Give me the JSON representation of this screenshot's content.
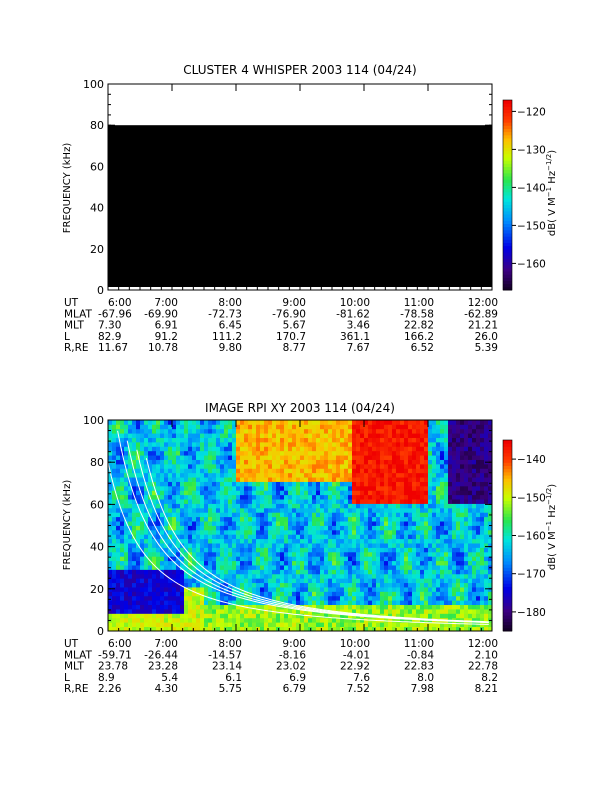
{
  "chart_data": [
    {
      "type": "heatmap",
      "title": "CLUSTER 4 WHISPER 2003 114 (04/24)",
      "ylabel": "FREQUENCY (kHz)",
      "ylim": [
        0,
        100
      ],
      "yticks": [
        "0",
        "20",
        "40",
        "60",
        "80",
        "100"
      ],
      "x_ticks": [
        "6:00",
        "7:00",
        "8:00",
        "9:00",
        "10:00",
        "11:00",
        "12:00"
      ],
      "data_frequency_range_khz": [
        0,
        80
      ],
      "data_fill_color": "#000000",
      "colorbar": {
        "label_parts": [
          "dB( V M",
          "-1",
          " Hz",
          "-1/2",
          ")"
        ],
        "range": [
          -167,
          -117
        ],
        "ticks": [
          "-120",
          "-130",
          "-140",
          "-150",
          "-160"
        ]
      },
      "ephemeris": [
        {
          "label": "UT",
          "values": [
            "6:00",
            "7:00",
            "8:00",
            "9:00",
            "10:00",
            "11:00",
            "12:00"
          ]
        },
        {
          "label": "MLAT",
          "values": [
            "-67.96",
            "-69.90",
            "-72.73",
            "-76.90",
            "-81.62",
            "-78.58",
            "-62.89"
          ]
        },
        {
          "label": "MLT",
          "values": [
            "7.30",
            "6.91",
            "6.45",
            "5.67",
            "3.46",
            "22.82",
            "21.21"
          ]
        },
        {
          "label": "L",
          "values": [
            "82.9",
            "91.2",
            "111.2",
            "170.7",
            "361.1",
            "166.2",
            "26.0"
          ]
        },
        {
          "label": "R,RE",
          "values": [
            "11.67",
            "10.78",
            "9.80",
            "8.77",
            "7.67",
            "6.52",
            "5.39"
          ]
        }
      ]
    },
    {
      "type": "heatmap",
      "title": "IMAGE RPI XY 2003 114 (04/24)",
      "ylabel": "FREQUENCY (kHz)",
      "ylim": [
        0,
        100
      ],
      "yticks": [
        "0",
        "20",
        "40",
        "60",
        "80",
        "100"
      ],
      "x_ticks": [
        "6:00",
        "7:00",
        "8:00",
        "9:00",
        "10:00",
        "11:00",
        "12:00"
      ],
      "colorbar": {
        "label_parts": [
          "dB( V M",
          "-1",
          " Hz",
          "-1/2",
          ")"
        ],
        "range": [
          -185,
          -135
        ],
        "ticks": [
          "-140",
          "-150",
          "-160",
          "-170",
          "-180"
        ]
      },
      "ephemeris": [
        {
          "label": "UT",
          "values": [
            "6:00",
            "7:00",
            "8:00",
            "9:00",
            "10:00",
            "11:00",
            "12:00"
          ]
        },
        {
          "label": "MLAT",
          "values": [
            "-59.71",
            "-26.44",
            "-14.57",
            "-8.16",
            "-4.01",
            "-0.84",
            "2.10"
          ]
        },
        {
          "label": "MLT",
          "values": [
            "23.78",
            "23.28",
            "23.14",
            "23.02",
            "22.92",
            "22.83",
            "22.78"
          ]
        },
        {
          "label": "L",
          "values": [
            "8.9",
            "5.4",
            "6.1",
            "6.9",
            "7.6",
            "8.0",
            "8.2"
          ]
        },
        {
          "label": "R,RE",
          "values": [
            "2.26",
            "4.30",
            "5.75",
            "6.79",
            "7.52",
            "7.98",
            "8.21"
          ]
        }
      ],
      "spectrogram_features": [
        {
          "x_range_hours": [
            9.8,
            11.0
          ],
          "y_range_khz": [
            60,
            100
          ],
          "level_db": -137
        },
        {
          "x_range_hours": [
            8.0,
            9.8
          ],
          "y_range_khz": [
            70,
            100
          ],
          "level_db": -145
        },
        {
          "x_range_hours": [
            11.3,
            12.0
          ],
          "y_range_khz": [
            60,
            100
          ],
          "level_db": -180
        },
        {
          "x_range_hours": [
            6.0,
            7.5
          ],
          "y_range_khz": [
            0,
            20
          ],
          "level_db": -150
        }
      ],
      "white_curves_khz_at_6h": [
        80,
        100,
        100,
        100,
        100
      ]
    }
  ]
}
